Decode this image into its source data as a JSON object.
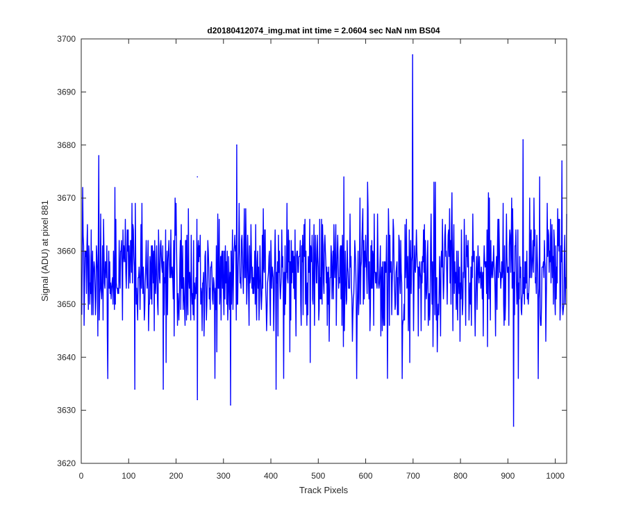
{
  "chart_data": {
    "type": "line",
    "title": "d20180412074_img.mat int time = 2.0604 sec  NaN nm BS04",
    "xlabel": "Track Pixels",
    "ylabel": "Signal (ADU) at pixel 881",
    "xlim": [
      0,
      1024
    ],
    "ylim": [
      3620,
      3700
    ],
    "xticks": [
      0,
      100,
      200,
      300,
      400,
      500,
      600,
      700,
      800,
      900,
      1000
    ],
    "yticks": [
      3620,
      3630,
      3640,
      3650,
      3660,
      3670,
      3680,
      3690,
      3700
    ],
    "grid": false,
    "line_color": "#0000ff",
    "series": [
      {
        "noise_model": {
          "n_points": 1024,
          "mean": 3656,
          "spread": 6.5,
          "seed": 20180412
        },
        "peaks": [
          {
            "x": 36,
            "y": 3678
          },
          {
            "x": 244,
            "y": 3674
          },
          {
            "x": 327,
            "y": 3680
          },
          {
            "x": 698,
            "y": 3697
          },
          {
            "x": 931,
            "y": 3681
          },
          {
            "x": 1013,
            "y": 3677
          }
        ],
        "dips": [
          {
            "x": 55,
            "y": 3636
          },
          {
            "x": 112,
            "y": 3634
          },
          {
            "x": 172,
            "y": 3634
          },
          {
            "x": 244,
            "y": 3632
          },
          {
            "x": 314,
            "y": 3631
          },
          {
            "x": 410,
            "y": 3634
          },
          {
            "x": 580,
            "y": 3636
          },
          {
            "x": 676,
            "y": 3636
          },
          {
            "x": 911,
            "y": 3627
          },
          {
            "x": 963,
            "y": 3636
          }
        ]
      }
    ]
  }
}
